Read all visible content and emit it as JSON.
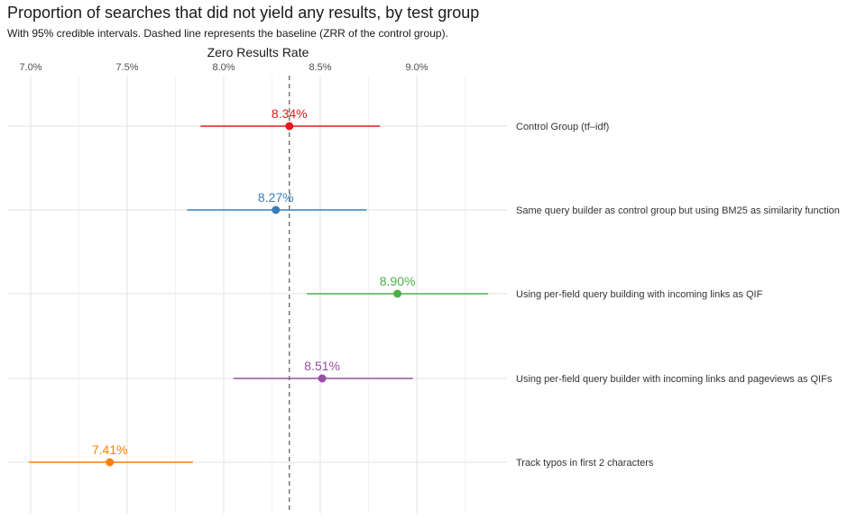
{
  "title": "Proportion of searches that did not yield any results, by test group",
  "subtitle": "With 95% credible intervals. Dashed line represents the baseline (ZRR of the control group).",
  "chart_data": {
    "type": "scatter",
    "title": "Proportion of searches that did not yield any results, by test group",
    "subtitle": "With 95% credible intervals. Dashed line represents the baseline (ZRR of the control group).",
    "xlabel": "Zero Results Rate",
    "x_axis_position": "top",
    "xlim": [
      6.88,
      9.4
    ],
    "x_ticks": [
      7.0,
      7.5,
      8.0,
      8.5,
      9.0
    ],
    "x_tick_labels": [
      "7.0%",
      "7.5%",
      "8.0%",
      "8.5%",
      "9.0%"
    ],
    "grid": true,
    "baseline": 8.34,
    "groups": [
      {
        "label": "Control Group (tf–idf)",
        "estimate": 8.34,
        "lower": 7.88,
        "upper": 8.81,
        "value_label": "8.34%",
        "color": "#e41a1c"
      },
      {
        "label": "Same query builder as control group but using BM25 as similarity function",
        "estimate": 8.27,
        "lower": 7.81,
        "upper": 8.74,
        "value_label": "8.27%",
        "color": "#377eb8"
      },
      {
        "label": "Using per-field query building with incoming links as QIF",
        "estimate": 8.9,
        "lower": 8.43,
        "upper": 9.37,
        "value_label": "8.90%",
        "color": "#4daf4a"
      },
      {
        "label": "Using per-field query builder with incoming links and pageviews as QIFs",
        "estimate": 8.51,
        "lower": 8.05,
        "upper": 8.98,
        "value_label": "8.51%",
        "color": "#984ea3"
      },
      {
        "label": "Track typos in first 2 characters",
        "estimate": 7.41,
        "lower": 6.99,
        "upper": 7.84,
        "value_label": "7.41%",
        "color": "#ff7f00"
      }
    ]
  }
}
